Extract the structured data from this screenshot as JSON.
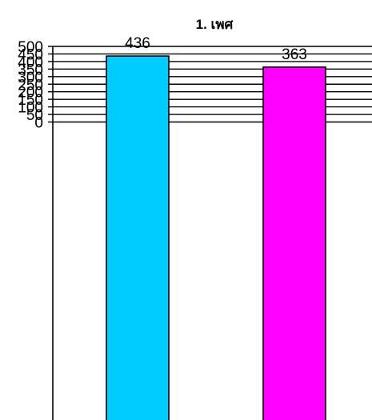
{
  "chart_data": {
    "type": "bar",
    "title": "1. เพศ",
    "categories": [
      "",
      ""
    ],
    "values": [
      436,
      363
    ],
    "colors": [
      "#00CCFF",
      "#FF00FF"
    ],
    "ylim": [
      0,
      500
    ],
    "yticks": [
      0,
      50,
      100,
      150,
      200,
      250,
      300,
      350,
      400,
      450,
      500
    ],
    "grid": true,
    "legend": "none",
    "data_labels": true
  }
}
